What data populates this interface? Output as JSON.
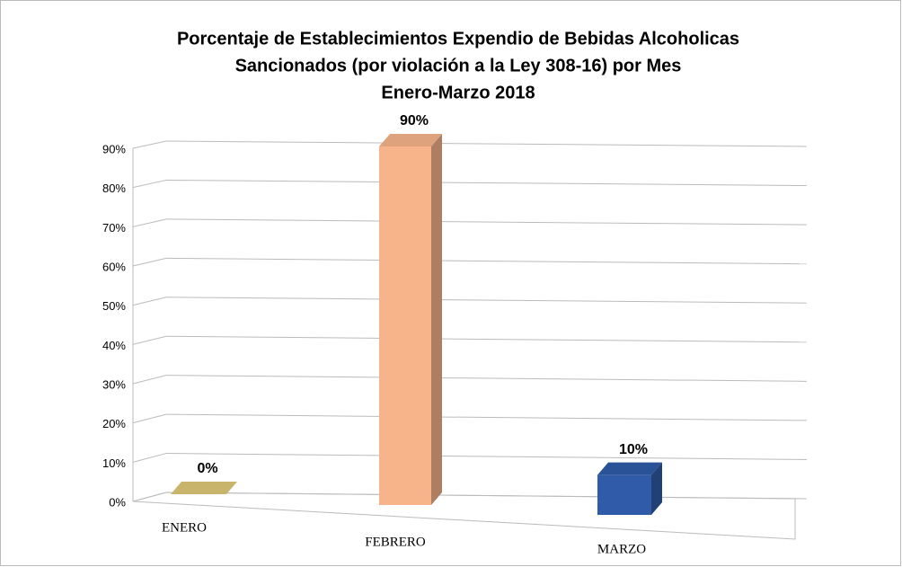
{
  "chart_data": {
    "type": "bar3d",
    "title": [
      "Porcentaje de Establecimientos Expendio de Bebidas Alcoholicas",
      "Sancionados (por violación a la Ley 308-16) por Mes",
      "Enero-Marzo 2018"
    ],
    "categories": [
      "ENERO",
      "FEBRERO",
      "MARZO"
    ],
    "values": [
      0,
      90,
      10
    ],
    "value_labels": [
      "0%",
      "90%",
      "10%"
    ],
    "colors": [
      "#c9b46c",
      "#f7b48a",
      "#2f5ba8"
    ],
    "ylim": [
      0,
      90
    ],
    "yticks": [
      {
        "value": 0,
        "label": "0%"
      },
      {
        "value": 10,
        "label": "10%"
      },
      {
        "value": 20,
        "label": "20%"
      },
      {
        "value": 30,
        "label": "30%"
      },
      {
        "value": 40,
        "label": "40%"
      },
      {
        "value": 50,
        "label": "50%"
      },
      {
        "value": 60,
        "label": "60%"
      },
      {
        "value": 70,
        "label": "70%"
      },
      {
        "value": 80,
        "label": "80%"
      },
      {
        "value": 90,
        "label": "90%"
      }
    ],
    "grid": true
  }
}
